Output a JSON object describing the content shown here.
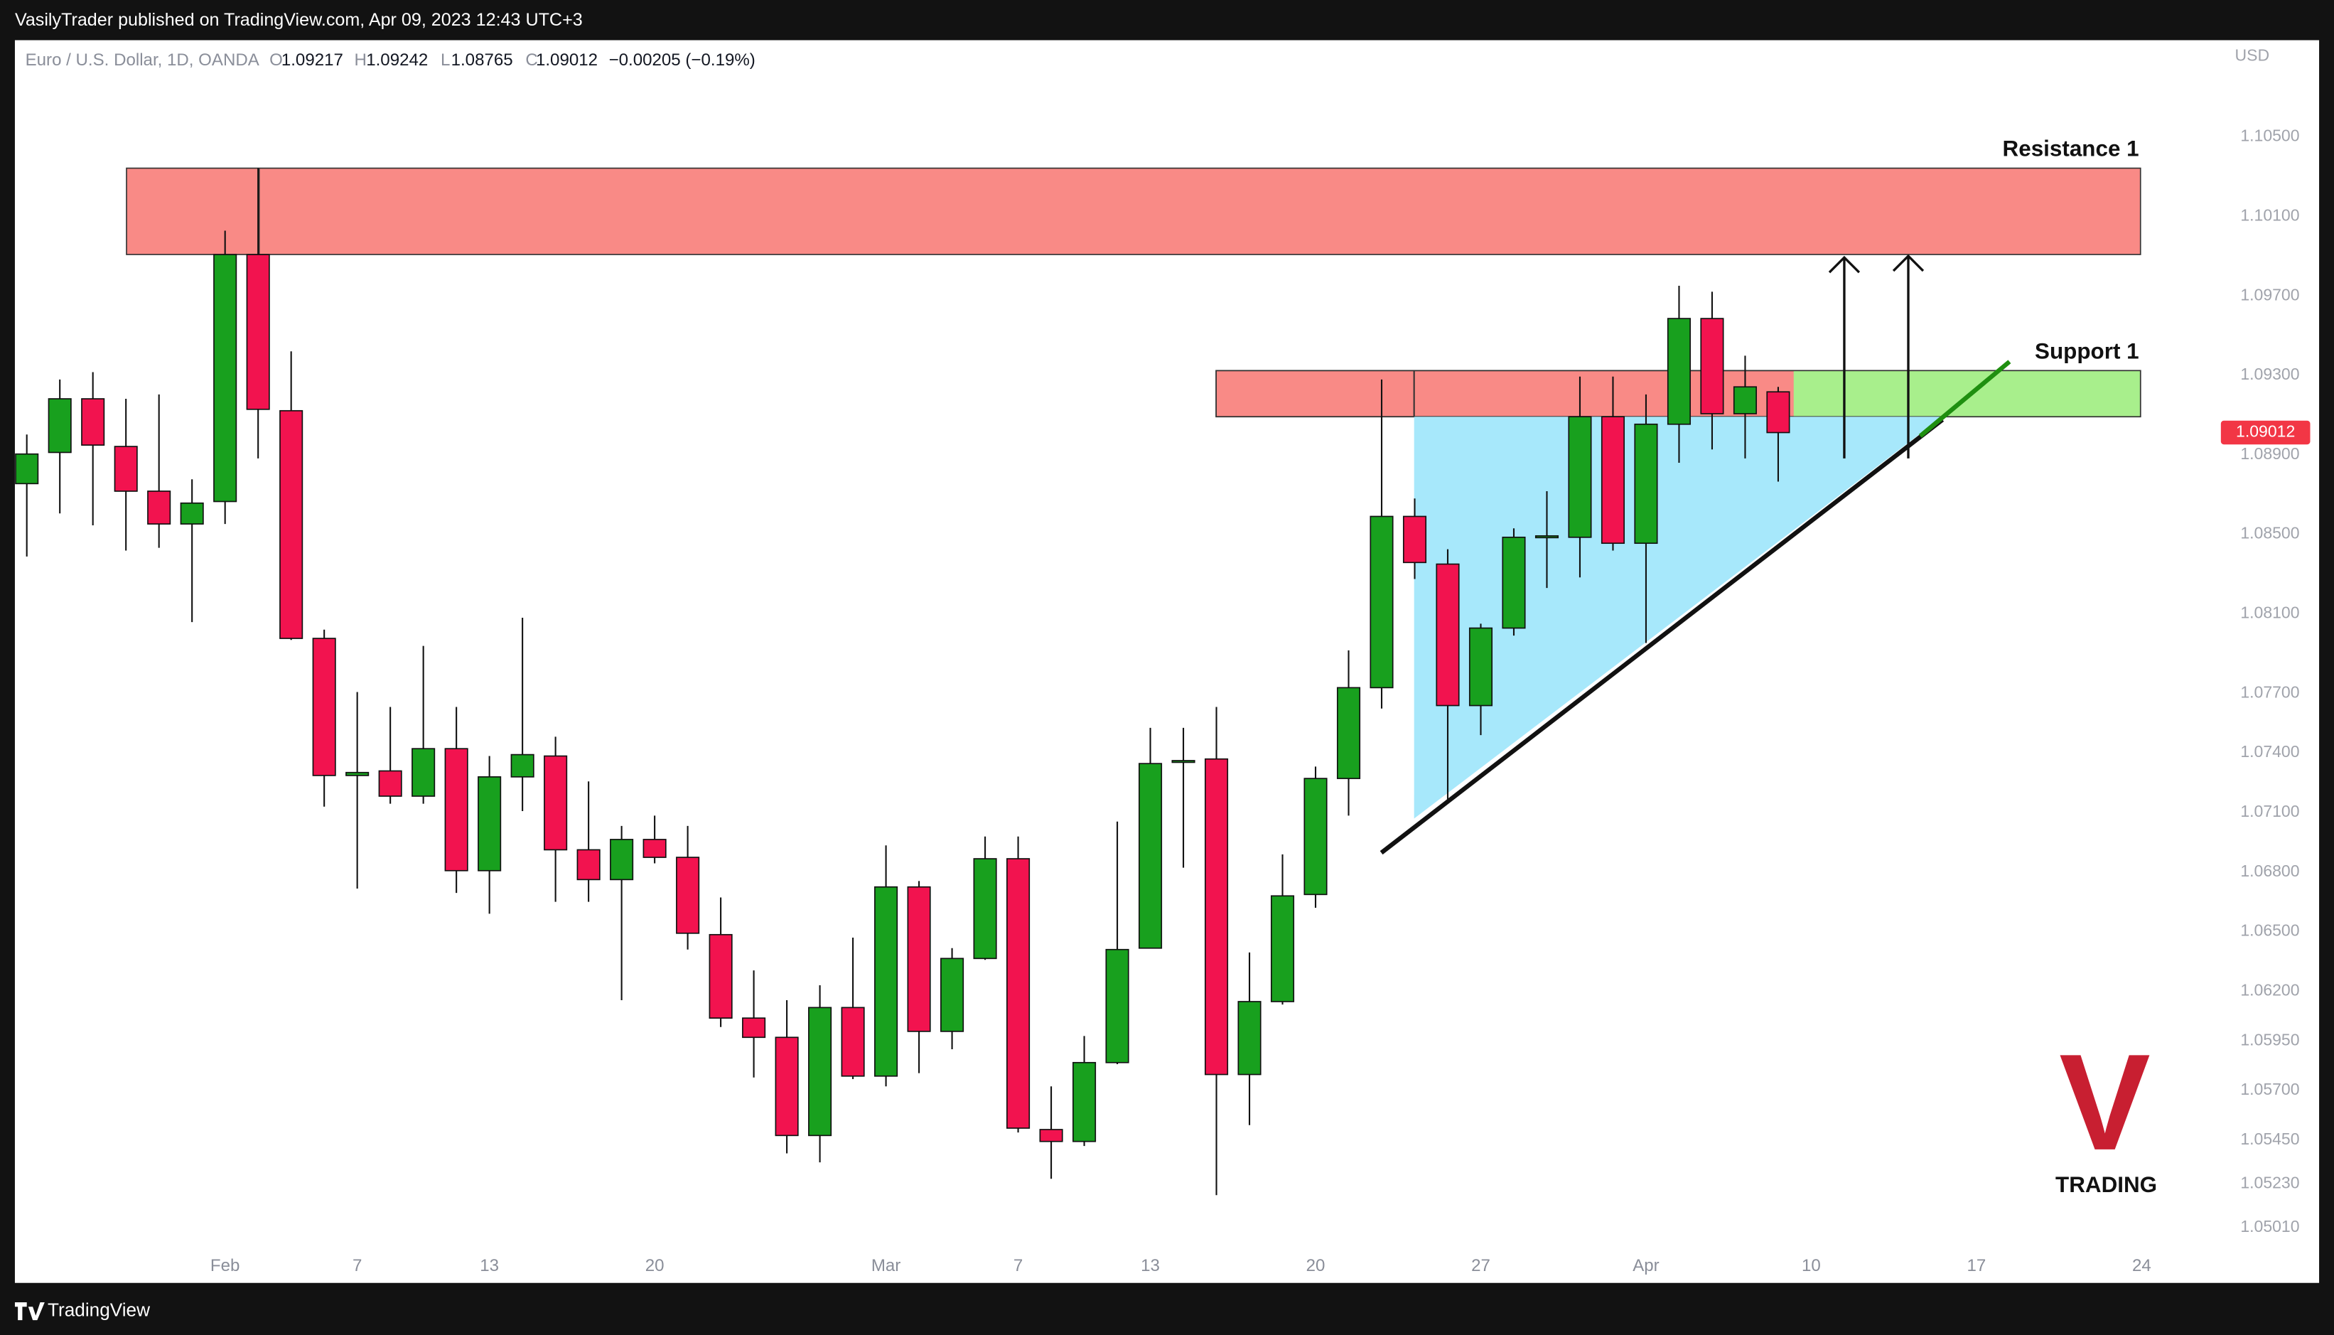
{
  "header": {
    "publisher": "VasilyTrader published on TradingView.com, Apr 09, 2023 12:43 UTC+3"
  },
  "footer": {
    "brand": "TradingView"
  },
  "watermark": {
    "letter": "V",
    "text": "TRADING"
  },
  "chart_data": {
    "type": "candlestick",
    "title": "Euro / U.S. Dollar, 1D, OANDA",
    "legend_labels": {
      "open": "O",
      "high": "H",
      "low": "L",
      "close": "C"
    },
    "change_label": "−0.00205 (−0.19%)",
    "currency": "USD",
    "annotations": {
      "resistance": "Resistance 1",
      "support": "Support 1"
    },
    "up_color": "#18a01e",
    "down_color": "#f2134f",
    "categories": [
      null,
      null,
      null,
      null,
      null,
      null,
      "Feb",
      null,
      null,
      null,
      "7",
      null,
      null,
      null,
      "13",
      null,
      null,
      null,
      null,
      "20",
      null,
      null,
      null,
      null,
      null,
      null,
      "Mar",
      null,
      null,
      null,
      "7",
      null,
      null,
      null,
      "13",
      null,
      null,
      null,
      null,
      "20",
      null,
      null,
      null,
      null,
      "27",
      null,
      null,
      null,
      null,
      "Apr",
      null,
      null,
      null,
      null,
      "10",
      null,
      null,
      null,
      null,
      "17",
      null,
      null,
      null,
      null,
      "24"
    ],
    "open": [
      1.08755,
      1.08912,
      1.09182,
      1.08942,
      1.08717,
      1.08552,
      1.08665,
      1.09908,
      1.09122,
      1.07976,
      1.07286,
      1.07309,
      1.07182,
      1.07421,
      1.06807,
      1.07279,
      1.07384,
      1.06912,
      1.06762,
      1.06964,
      1.06874,
      1.06485,
      1.06065,
      1.05968,
      1.05474,
      1.06118,
      1.05773,
      1.06725,
      1.05998,
      1.06365,
      1.06867,
      1.05504,
      1.05444,
      1.05841,
      1.06417,
      1.07354,
      1.07369,
      1.05781,
      1.06148,
      1.06687,
      1.07271,
      1.07728,
      1.0859,
      1.0835,
      1.07638,
      1.08028,
      1.08485,
      1.08485,
      1.09092,
      1.08455,
      1.09054,
      1.09586,
      1.09107,
      1.09217,
      null,
      null,
      null,
      null,
      null,
      null,
      null,
      null,
      null,
      null,
      null
    ],
    "high": [
      1.09002,
      1.09279,
      1.09316,
      1.09182,
      1.09204,
      1.08777,
      1.10028,
      1.10343,
      1.09421,
      1.0802,
      1.07706,
      1.07631,
      1.07938,
      1.07631,
      1.07384,
      1.0808,
      1.07481,
      1.07256,
      1.07032,
      1.07084,
      1.07032,
      1.06672,
      1.06305,
      1.06155,
      1.0623,
      1.0647,
      1.06934,
      1.06755,
      1.06417,
      1.06979,
      1.06979,
      1.05721,
      1.05975,
      1.07054,
      1.07526,
      1.07526,
      1.07631,
      1.06395,
      1.06889,
      1.07331,
      1.07916,
      1.09279,
      1.0868,
      1.08425,
      1.0805,
      1.0853,
      1.08717,
      1.09294,
      1.09294,
      1.09204,
      1.09751,
      1.09721,
      1.09399,
      1.09242,
      null,
      null,
      null,
      null,
      null,
      null,
      null,
      null,
      null,
      null,
      null
    ],
    "low": [
      1.08388,
      1.08605,
      1.08545,
      1.08418,
      1.08432,
      1.08058,
      1.08552,
      1.08882,
      1.07968,
      1.07129,
      1.06717,
      1.07144,
      1.07144,
      1.06695,
      1.0659,
      1.07107,
      1.0665,
      1.0665,
      1.06155,
      1.06844,
      1.0641,
      1.0602,
      1.05766,
      1.05384,
      1.05339,
      1.05758,
      1.05721,
      1.05788,
      1.05908,
      1.06358,
      1.05489,
      1.05256,
      1.05421,
      1.05833,
      1.06417,
      1.06822,
      1.05174,
      1.05526,
      1.06133,
      1.0662,
      1.07084,
      1.07623,
      1.08275,
      1.07159,
      1.07489,
      1.0799,
      1.0823,
      1.08283,
      1.08418,
      1.07953,
      1.0886,
      1.08927,
      1.08882,
      1.08765,
      null,
      null,
      null,
      null,
      null,
      null,
      null,
      null,
      null,
      null,
      null
    ],
    "close": [
      1.08904,
      1.09182,
      1.08949,
      1.08717,
      1.08552,
      1.08657,
      1.09908,
      1.09129,
      1.07976,
      1.07286,
      1.07301,
      1.07182,
      1.07421,
      1.06807,
      1.07279,
      1.07391,
      1.06912,
      1.06762,
      1.06964,
      1.06874,
      1.06492,
      1.06065,
      1.05968,
      1.05474,
      1.06118,
      1.05773,
      1.06725,
      1.05998,
      1.06365,
      1.06867,
      1.05511,
      1.05444,
      1.05841,
      1.0641,
      1.07346,
      1.07361,
      1.05781,
      1.06148,
      1.0668,
      1.07271,
      1.07728,
      1.0859,
      1.08358,
      1.07638,
      1.08028,
      1.08485,
      1.08492,
      1.09092,
      1.08455,
      1.09054,
      1.09586,
      1.09107,
      1.09242,
      1.09012,
      null,
      null,
      null,
      null,
      null,
      null,
      null,
      null,
      null,
      null,
      null
    ],
    "ylim": [
      1.04732,
      1.10987
    ],
    "yticks": [
      {
        "value": 1.105,
        "label": "1.10500"
      },
      {
        "value": 1.101,
        "label": "1.10100"
      },
      {
        "value": 1.097,
        "label": "1.09700"
      },
      {
        "value": 1.093,
        "label": "1.09300"
      },
      {
        "value": 1.089,
        "label": "1.08900"
      },
      {
        "value": 1.085,
        "label": "1.08500"
      },
      {
        "value": 1.081,
        "label": "1.08100"
      },
      {
        "value": 1.077,
        "label": "1.07700"
      },
      {
        "value": 1.074,
        "label": "1.07400"
      },
      {
        "value": 1.071,
        "label": "1.07100"
      },
      {
        "value": 1.068,
        "label": "1.06800"
      },
      {
        "value": 1.065,
        "label": "1.06500"
      },
      {
        "value": 1.062,
        "label": "1.06200"
      },
      {
        "value": 1.0595,
        "label": "1.05950"
      },
      {
        "value": 1.057,
        "label": "1.05700"
      },
      {
        "value": 1.0545,
        "label": "1.05450"
      },
      {
        "value": 1.0523,
        "label": "1.05230"
      },
      {
        "value": 1.0501,
        "label": "1.05010"
      }
    ],
    "grid": false
  }
}
